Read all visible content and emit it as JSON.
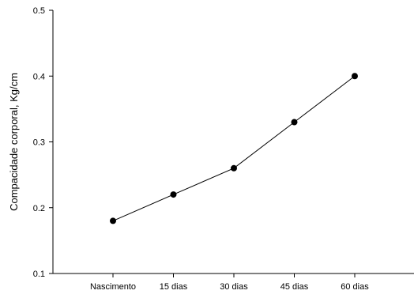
{
  "chart_data": {
    "type": "line",
    "title": "",
    "xlabel": "",
    "ylabel": "Compacidade corporal, Kg/cm",
    "categories": [
      "Nascimento",
      "15 dias",
      "30 dias",
      "45 dias",
      "60 dias"
    ],
    "series": [
      {
        "values": [
          0.18,
          0.22,
          0.26,
          0.33,
          0.4
        ]
      }
    ],
    "ylim": [
      0.1,
      0.5
    ],
    "yticks": [
      "0.1",
      "0.2",
      "0.3",
      "0.4",
      "0.5"
    ],
    "grid": false,
    "legend": "none",
    "colors": {
      "line": "#000000",
      "marker": "#000000",
      "axis": "#000000"
    }
  }
}
